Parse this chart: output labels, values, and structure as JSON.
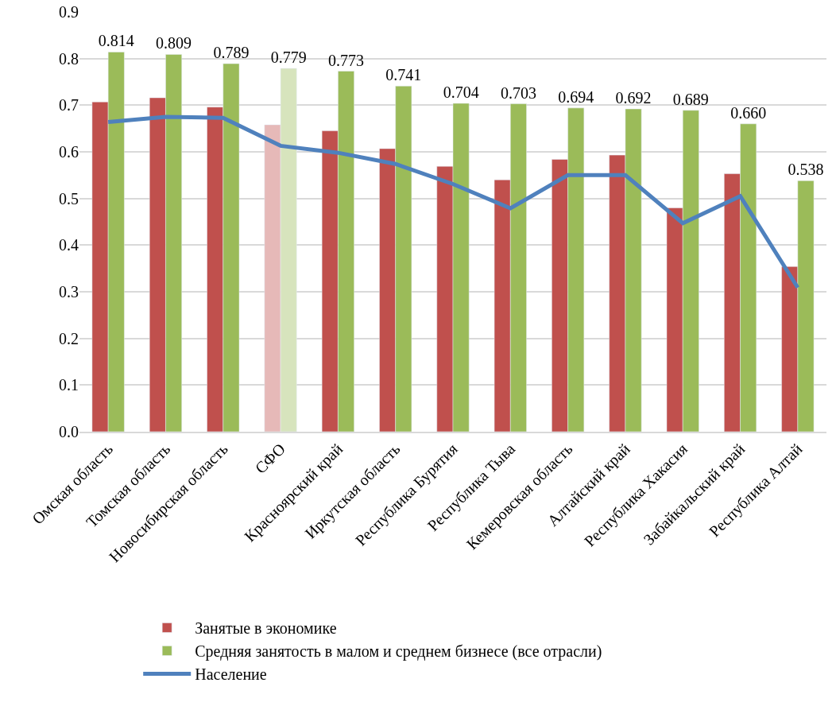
{
  "chart_data": {
    "type": "bar",
    "categories": [
      "Омская область",
      "Томская область",
      "Новосибирская область",
      "СФО",
      "Красноярский край",
      "Иркутская область",
      "Республика Бурятия",
      "Республика Тыва",
      "Кемеровская область",
      "Алтайский край",
      "Республика Хакасия",
      "Забайкальский край",
      "Республика Алтай"
    ],
    "series": [
      {
        "name": "Занятые в экономике",
        "color": "#c0504d",
        "colors": [
          null,
          null,
          null,
          "#e6b9b8",
          null,
          null,
          null,
          null,
          null,
          null,
          null,
          null,
          null
        ],
        "values": [
          0.707,
          0.716,
          0.696,
          0.658,
          0.645,
          0.607,
          0.569,
          0.54,
          0.584,
          0.593,
          0.48,
          0.553,
          0.354
        ]
      },
      {
        "name": "Средняя занятость в малом и среднем бизнесе (все отрасли)",
        "color": "#9bbb59",
        "colors": [
          null,
          null,
          null,
          "#d7e4bd",
          null,
          null,
          null,
          null,
          null,
          null,
          null,
          null,
          null
        ],
        "values": [
          0.814,
          0.809,
          0.789,
          0.779,
          0.773,
          0.741,
          0.704,
          0.703,
          0.694,
          0.692,
          0.689,
          0.66,
          0.538
        ],
        "value_labels": [
          "0.814",
          "0.809",
          "0.789",
          "0.779",
          "0.773",
          "0.741",
          "0.704",
          "0.703",
          "0.694",
          "0.692",
          "0.689",
          "0.660",
          "0.538"
        ]
      },
      {
        "name": "Население",
        "type": "line",
        "color": "#4f81bd",
        "marker": "none",
        "line_style": "solid",
        "values": [
          0.664,
          0.675,
          0.673,
          0.613,
          0.598,
          0.574,
          0.531,
          0.479,
          0.55,
          0.55,
          0.447,
          0.505,
          0.309
        ]
      }
    ],
    "ylim": [
      0,
      0.9
    ],
    "yticks": [
      {
        "value": 0,
        "label": "0.0"
      },
      0.1,
      0.2,
      0.3,
      0.4,
      0.5,
      0.6,
      0.7,
      0.8,
      0.9
    ],
    "grid": "y",
    "legend": "bottom"
  }
}
